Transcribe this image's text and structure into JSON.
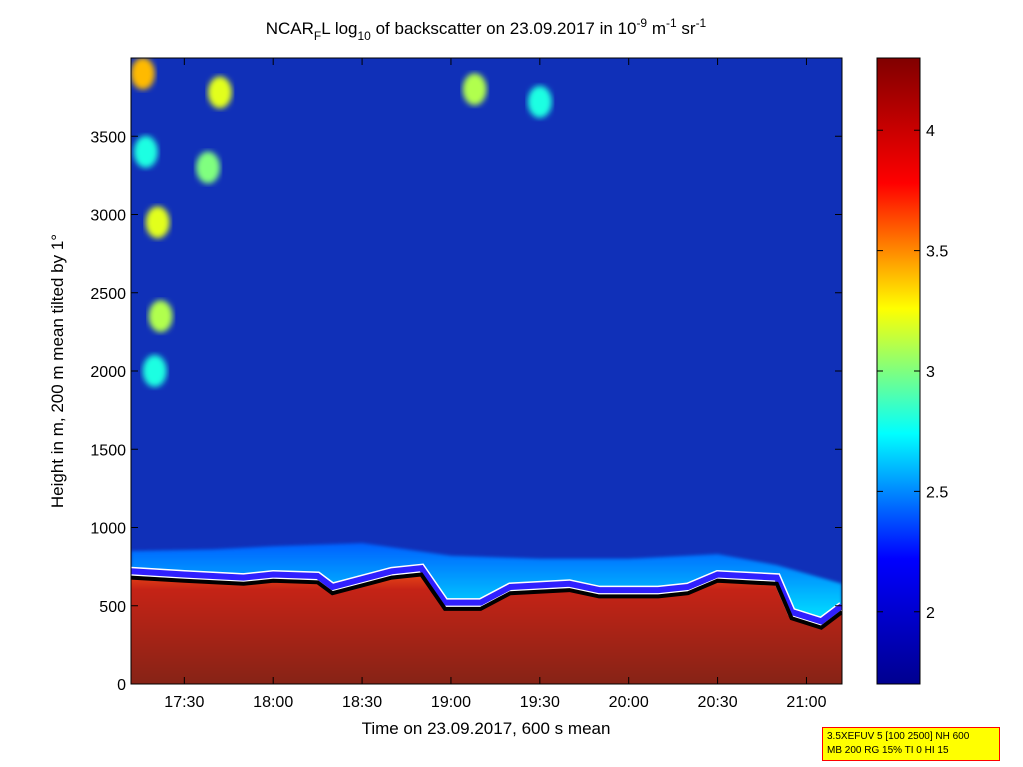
{
  "chart_data": {
    "type": "heatmap",
    "title": {
      "main": "NCAR",
      "sub": "F",
      "mid1": "L log",
      "sub2": "10",
      "mid2": " of backscatter on 23.09.2017 in 10",
      "sup1": "-9",
      "mid3": " m",
      "sup2": "-1",
      "mid4": " sr",
      "sup3": "-1"
    },
    "xlabel": "Time on 23.09.2017, 600 s mean",
    "ylabel": "Height in m, 200 m mean tilted by 1°",
    "x_range": [
      "17:12",
      "21:12"
    ],
    "y_range": [
      0,
      4000
    ],
    "x_ticks": [
      "17:30",
      "18:00",
      "18:30",
      "19:00",
      "19:30",
      "20:00",
      "20:30",
      "21:00"
    ],
    "y_ticks": [
      0,
      500,
      1000,
      1500,
      2000,
      2500,
      3000,
      3500
    ],
    "colorbar": {
      "range": [
        1.7,
        4.3
      ],
      "ticks": [
        "2",
        "2.5",
        "3",
        "3.5",
        "4"
      ],
      "colormap": "jet",
      "colors": [
        "#00008f",
        "#0000ff",
        "#00ffff",
        "#ffff00",
        "#ff0000",
        "#800000"
      ]
    },
    "layers": {
      "boundary_layer_top_m": [
        [
          "17:12",
          720
        ],
        [
          "17:30",
          700
        ],
        [
          "17:50",
          680
        ],
        [
          "18:00",
          700
        ],
        [
          "18:15",
          690
        ],
        [
          "18:20",
          620
        ],
        [
          "18:40",
          720
        ],
        [
          "18:50",
          740
        ],
        [
          "18:58",
          520
        ],
        [
          "19:10",
          520
        ],
        [
          "19:20",
          620
        ],
        [
          "19:40",
          640
        ],
        [
          "19:50",
          600
        ],
        [
          "20:10",
          600
        ],
        [
          "20:20",
          620
        ],
        [
          "20:30",
          700
        ],
        [
          "20:50",
          680
        ],
        [
          "20:55",
          460
        ],
        [
          "21:05",
          400
        ],
        [
          "21:12",
          500
        ]
      ],
      "aerosol_layer_top_m": [
        [
          "17:12",
          850
        ],
        [
          "17:40",
          860
        ],
        [
          "18:00",
          880
        ],
        [
          "18:30",
          900
        ],
        [
          "19:00",
          820
        ],
        [
          "19:30",
          800
        ],
        [
          "20:00",
          800
        ],
        [
          "20:30",
          830
        ],
        [
          "20:50",
          760
        ],
        [
          "21:12",
          640
        ]
      ],
      "cloud_patches": [
        {
          "time": "17:16",
          "height_m": 3900,
          "value": 3.4
        },
        {
          "time": "17:17",
          "height_m": 3400,
          "value": 2.8
        },
        {
          "time": "17:21",
          "height_m": 2950,
          "value": 3.2
        },
        {
          "time": "17:22",
          "height_m": 2350,
          "value": 3.1
        },
        {
          "time": "17:20",
          "height_m": 2000,
          "value": 2.8
        },
        {
          "time": "17:42",
          "height_m": 3780,
          "value": 3.2
        },
        {
          "time": "17:38",
          "height_m": 3300,
          "value": 3.0
        },
        {
          "time": "19:08",
          "height_m": 3800,
          "value": 3.1
        },
        {
          "time": "19:30",
          "height_m": 3720,
          "value": 2.8
        }
      ]
    }
  },
  "info_box": {
    "line1": "3.5XEFUV 5 [100 2500] NH 600",
    "line2": "MB 200 RG 15% TI 0 HI 15"
  }
}
